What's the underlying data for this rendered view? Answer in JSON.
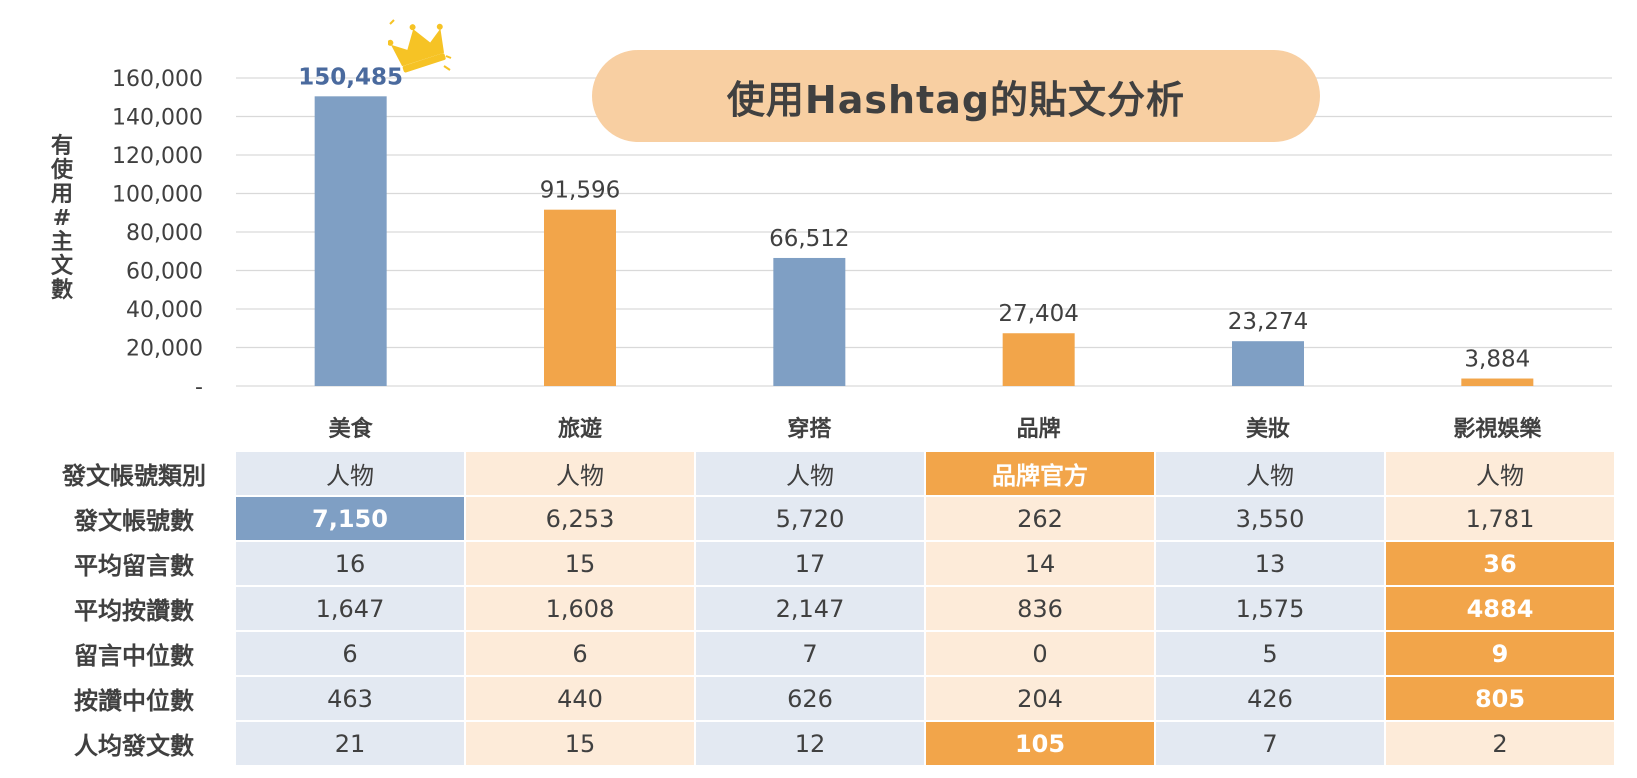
{
  "chart_data": {
    "type": "bar",
    "title": "使用Hashtag的貼文分析",
    "ylabel": "有使用#主文數",
    "xlabel": "",
    "categories": [
      "美食",
      "旅遊",
      "穿搭",
      "品牌",
      "美妝",
      "影視娛樂"
    ],
    "values": [
      150485,
      91596,
      66512,
      27404,
      23274,
      3884
    ],
    "value_labels": [
      "150,485",
      "91,596",
      "66,512",
      "27,404",
      "23,274",
      "3,884"
    ],
    "ylim": [
      0,
      160000
    ],
    "yticks": [
      0,
      20000,
      40000,
      60000,
      80000,
      100000,
      120000,
      140000,
      160000
    ],
    "ytick_labels": [
      "-",
      "20,000",
      "40,000",
      "60,000",
      "80,000",
      "100,000",
      "120,000",
      "140,000",
      "160,000"
    ],
    "grid": true,
    "bar_colors": [
      "#7f9fc4",
      "#f2a54a",
      "#7f9fc4",
      "#f2a54a",
      "#7f9fc4",
      "#f2a54a"
    ],
    "highlight_label_color": "#4a6a9e",
    "grid_color": "#d9d9d9"
  },
  "table": {
    "rows": [
      {
        "label": "發文帳號類別",
        "values": [
          "人物",
          "人物",
          "人物",
          "品牌官方",
          "人物",
          "人物"
        ],
        "highlight": [
          null,
          null,
          null,
          "orange",
          null,
          null
        ]
      },
      {
        "label": "發文帳號數",
        "values": [
          "7,150",
          "6,253",
          "5,720",
          "262",
          "3,550",
          "1,781"
        ],
        "highlight": [
          "blue",
          null,
          null,
          null,
          null,
          null
        ]
      },
      {
        "label": "平均留言數",
        "values": [
          "16",
          "15",
          "17",
          "14",
          "13",
          "36"
        ],
        "highlight": [
          null,
          null,
          null,
          null,
          null,
          "orange"
        ]
      },
      {
        "label": "平均按讚數",
        "values": [
          "1,647",
          "1,608",
          "2,147",
          "836",
          "1,575",
          "4884"
        ],
        "highlight": [
          null,
          null,
          null,
          null,
          null,
          "orange"
        ]
      },
      {
        "label": "留言中位數",
        "values": [
          "6",
          "6",
          "7",
          "0",
          "5",
          "9"
        ],
        "highlight": [
          null,
          null,
          null,
          null,
          null,
          "orange"
        ]
      },
      {
        "label": "按讚中位數",
        "values": [
          "463",
          "440",
          "626",
          "204",
          "426",
          "805"
        ],
        "highlight": [
          null,
          null,
          null,
          null,
          null,
          "orange"
        ]
      },
      {
        "label": "人均發文數",
        "values": [
          "21",
          "15",
          "12",
          "105",
          "7",
          "2"
        ],
        "highlight": [
          null,
          null,
          null,
          "orange",
          null,
          null
        ]
      }
    ],
    "column_tints": [
      "blue",
      "peach",
      "blue",
      "peach",
      "blue",
      "peach"
    ]
  },
  "decor": {
    "crown_icon": "crown-icon",
    "crown_color": "#f6c325",
    "title_pill_color": "#f8cfa2"
  }
}
